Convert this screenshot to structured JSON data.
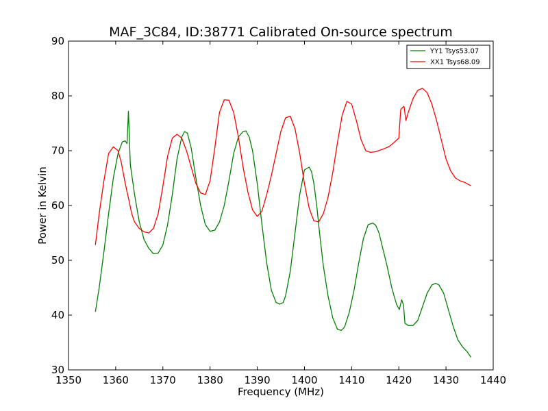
{
  "chart_data": {
    "type": "line",
    "title": "MAF_3C84, ID:38771 Calibrated On-source spectrum",
    "xlabel": "Frequency (MHz)",
    "ylabel": "Power in Kelvin",
    "xlim": [
      1350,
      1440
    ],
    "ylim": [
      30,
      90
    ],
    "xticks": [
      1350,
      1360,
      1370,
      1380,
      1390,
      1400,
      1410,
      1420,
      1430,
      1440
    ],
    "yticks": [
      30,
      40,
      50,
      60,
      70,
      80,
      90
    ],
    "grid": false,
    "legend_position": "top-right",
    "series": [
      {
        "name": "YY1 Tsys53.07",
        "color": "#008000",
        "x": [
          1355.7,
          1356.5,
          1357.5,
          1358.5,
          1359.5,
          1360.5,
          1361.4,
          1362.0,
          1362.4,
          1362.7,
          1363.1,
          1364,
          1365,
          1366,
          1367,
          1368,
          1369,
          1370,
          1371,
          1372,
          1373,
          1374,
          1374.6,
          1375.2,
          1376,
          1377,
          1378,
          1379,
          1380,
          1381,
          1382,
          1383,
          1384,
          1385,
          1386,
          1387,
          1387.6,
          1388.3,
          1389,
          1390,
          1391,
          1392,
          1393,
          1394,
          1394.8,
          1395.5,
          1396,
          1397,
          1398,
          1399,
          1400,
          1401,
          1401.5,
          1402,
          1402.6,
          1403.2,
          1404,
          1405,
          1406,
          1407,
          1407.8,
          1408.5,
          1409.5,
          1410.5,
          1411.5,
          1412.5,
          1413.5,
          1414.5,
          1415.1,
          1415.8,
          1416.5,
          1417.5,
          1418.5,
          1419.5,
          1420.1,
          1420.6,
          1421,
          1421.3,
          1422,
          1423,
          1424,
          1425,
          1426,
          1427,
          1427.8,
          1428.5,
          1429.5,
          1430.5,
          1431.5,
          1432.5,
          1433.5,
          1434.5,
          1435.3
        ],
        "y": [
          40.6,
          45,
          51.5,
          58.5,
          65,
          69.5,
          71.6,
          71.8,
          71.3,
          77.2,
          67.5,
          62,
          57,
          53.8,
          52.2,
          51.2,
          51.3,
          52.8,
          56.5,
          62,
          68.5,
          72.5,
          73.5,
          73.2,
          70.5,
          65,
          60,
          56.5,
          55.3,
          55.5,
          57,
          60,
          64.5,
          69.5,
          72.5,
          73.5,
          73.6,
          72.5,
          70,
          64,
          56.5,
          49.5,
          44.5,
          42.3,
          42,
          42.3,
          43.5,
          48,
          55,
          62,
          66.5,
          67,
          66.2,
          64,
          60,
          55,
          49,
          43.5,
          39.5,
          37.4,
          37.2,
          37.8,
          40.5,
          44.5,
          49.5,
          54,
          56.5,
          56.8,
          56.4,
          55,
          52.5,
          49,
          45,
          42,
          41,
          42.8,
          41.8,
          38.5,
          38.1,
          38.1,
          39,
          41.5,
          44,
          45.5,
          45.8,
          45.5,
          44,
          41,
          38,
          35.5,
          34.2,
          33.3,
          32.3
        ]
      },
      {
        "name": "XX1 Tsys68.09",
        "color": "#ff0000",
        "x": [
          1355.7,
          1356.5,
          1357.5,
          1358.5,
          1359.5,
          1360.5,
          1361.2,
          1361.8,
          1362.4,
          1362.8,
          1363.4,
          1364,
          1365,
          1366,
          1367,
          1368,
          1369,
          1370,
          1371,
          1372,
          1373,
          1374,
          1375,
          1376,
          1377,
          1378,
          1379,
          1380,
          1381,
          1382,
          1383,
          1384,
          1385,
          1386,
          1387,
          1388,
          1389,
          1390,
          1391,
          1392,
          1393,
          1394,
          1395,
          1396,
          1397,
          1398,
          1399,
          1400,
          1401,
          1402,
          1403,
          1404,
          1405,
          1406,
          1407,
          1408,
          1409,
          1410,
          1411,
          1412,
          1413,
          1414,
          1415,
          1416,
          1417,
          1418,
          1419,
          1420,
          1420.4,
          1420.7,
          1421.1,
          1421.5,
          1422,
          1423,
          1424,
          1425,
          1426,
          1427,
          1428,
          1429,
          1430,
          1431,
          1432,
          1433,
          1434,
          1435.3
        ],
        "y": [
          52.8,
          58.5,
          64.5,
          69.5,
          70.7,
          70,
          67.8,
          65,
          62.5,
          61,
          58.5,
          57,
          55.8,
          55.2,
          55,
          55.8,
          58.5,
          63.5,
          69,
          72.3,
          73,
          72.3,
          70,
          67,
          64,
          62.3,
          62,
          64.5,
          70.5,
          77,
          79.3,
          79.2,
          77,
          72.5,
          67,
          62.5,
          59.2,
          58,
          59,
          62,
          65.5,
          69.5,
          73.5,
          76,
          76.3,
          74,
          69.5,
          64,
          59.5,
          57.2,
          57,
          58.5,
          61.5,
          66,
          71.5,
          76.5,
          79,
          78.5,
          75.5,
          72,
          70,
          69.7,
          69.8,
          70.1,
          70.4,
          70.8,
          71.5,
          72.3,
          77.5,
          77.8,
          78.1,
          75.5,
          77,
          79.5,
          81,
          81.4,
          80.6,
          78.5,
          75.5,
          72,
          68.5,
          66.3,
          65,
          64.5,
          64.2,
          63.6
        ]
      }
    ]
  }
}
